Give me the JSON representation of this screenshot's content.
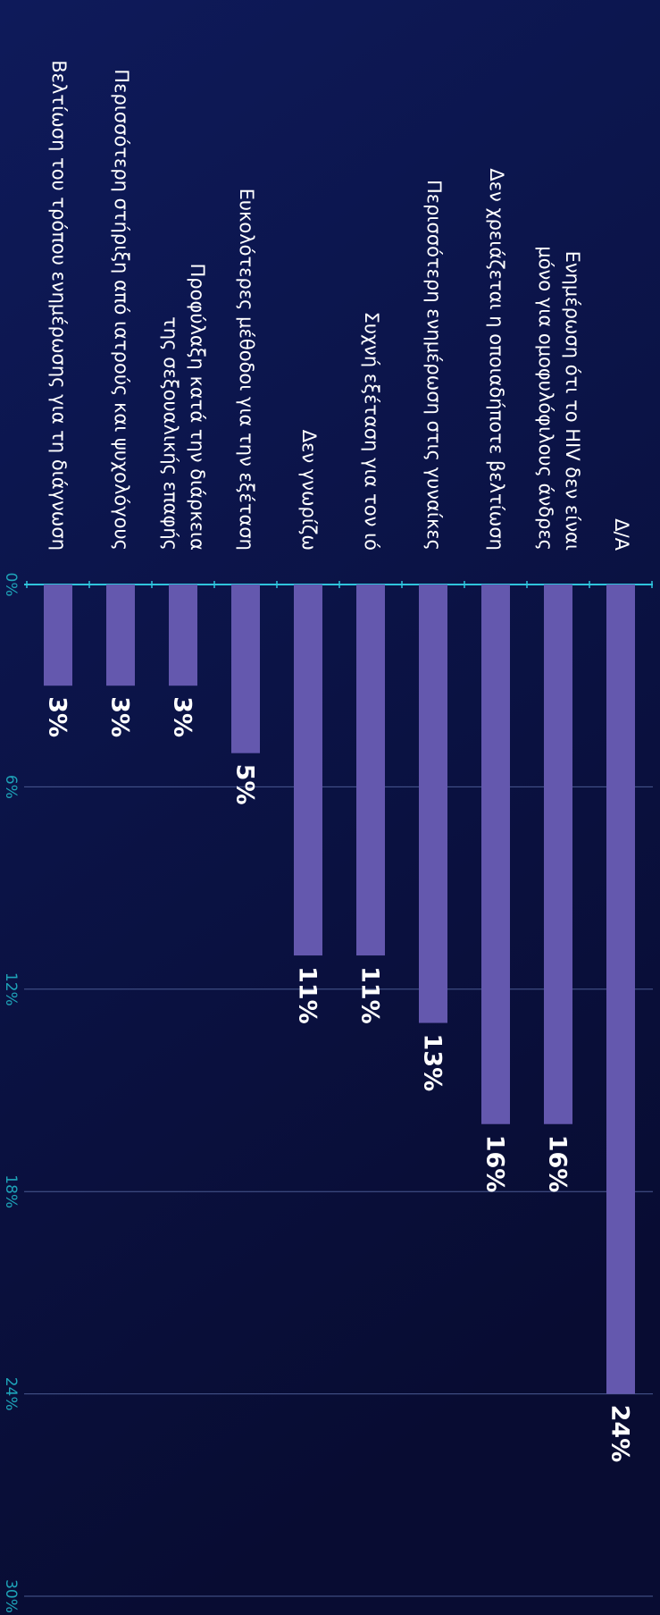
{
  "chart_data": {
    "type": "bar",
    "orientation": "horizontal",
    "categories": [
      [
        "Δ/Α"
      ],
      [
        "Ενημέρωση ότι το HIV δεν είναι",
        "μόνο για ομοφυλόφιλους άνδρες"
      ],
      [
        "Δεν χρειάζεται η οποιαδήποτε βελτίωση"
      ],
      [
        "Περισσότερη ενημέρωση στις γυναίκες"
      ],
      [
        "Συχνή εξέταση για τον ιό"
      ],
      [
        "Δεν γνωρίζω"
      ],
      [
        "Ευκολότερες μέθοδοι για την εξέταση"
      ],
      [
        "Προφύλαξη κατά την διάρκεια",
        "της σεξουαλικής επαφής"
      ],
      [
        "Περισσότερη στήριξη από ιατρούς και ψυχολόγους"
      ],
      [
        "Βελτίωση του τρόπου ενημέρωσης για τη διάγνωση"
      ]
    ],
    "values": [
      24,
      16,
      16,
      13,
      11,
      11,
      5,
      3,
      3,
      3
    ],
    "value_labels": [
      "24%",
      "16%",
      "16%",
      "13%",
      "11%",
      "11%",
      "5%",
      "3%",
      "3%",
      "3%"
    ],
    "color": "#6458ae",
    "xlim": [
      0,
      30
    ],
    "xticks": [
      {
        "value": 0,
        "label": "0%"
      },
      {
        "value": 6,
        "label": "6%"
      },
      {
        "value": 12,
        "label": "12%"
      },
      {
        "value": 18,
        "label": "18%"
      },
      {
        "value": 24,
        "label": "24%"
      },
      {
        "value": 30,
        "label": "30%"
      }
    ],
    "grid": true
  }
}
